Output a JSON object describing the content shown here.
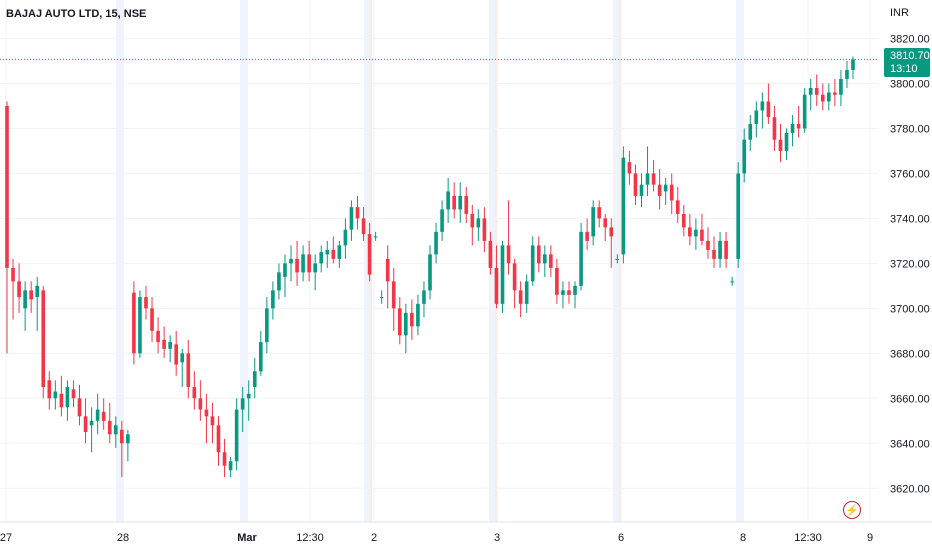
{
  "header": {
    "title": "BAJAJ AUTO LTD, 15, NSE"
  },
  "price_scale": {
    "currency": "INR"
  },
  "current_price": {
    "value": "3810.70",
    "countdown": "13:10"
  },
  "colors": {
    "up": "#089981",
    "down": "#f23645",
    "grid": "#f0f3fa",
    "text": "#131722"
  },
  "icons": {
    "alert": "lightning-icon"
  },
  "chart_data": {
    "type": "candlestick",
    "title": "BAJAJ AUTO LTD, 15, NSE",
    "ylim": [
      3605,
      3830
    ],
    "y_ticks": [
      3620,
      3640,
      3660,
      3680,
      3700,
      3720,
      3740,
      3760,
      3780,
      3800,
      3820
    ],
    "x_ticks": [
      "27",
      "28",
      "Mar",
      "12:30",
      "2",
      "3",
      "6",
      "8",
      "12:30",
      "9"
    ],
    "session_breaks": [
      "28",
      "Mar",
      "2",
      "3",
      "6",
      "8"
    ],
    "last_price": 3810.7,
    "candles": [
      [
        3790,
        3792,
        3680,
        3718
      ],
      [
        3718,
        3722,
        3695,
        3712
      ],
      [
        3712,
        3720,
        3698,
        3705
      ],
      [
        3700,
        3712,
        3690,
        3708
      ],
      [
        3708,
        3712,
        3698,
        3704
      ],
      [
        3705,
        3714,
        3690,
        3710
      ],
      [
        3708,
        3710,
        3660,
        3665
      ],
      [
        3668,
        3672,
        3655,
        3660
      ],
      [
        3660,
        3668,
        3655,
        3663
      ],
      [
        3662,
        3670,
        3652,
        3656
      ],
      [
        3656,
        3668,
        3650,
        3665
      ],
      [
        3664,
        3668,
        3656,
        3660
      ],
      [
        3660,
        3666,
        3648,
        3652
      ],
      [
        3652,
        3660,
        3640,
        3645
      ],
      [
        3648,
        3656,
        3636,
        3650
      ],
      [
        3650,
        3662,
        3644,
        3655
      ],
      [
        3654,
        3660,
        3646,
        3650
      ],
      [
        3650,
        3658,
        3640,
        3644
      ],
      [
        3644,
        3652,
        3638,
        3648
      ],
      [
        3646,
        3650,
        3625,
        3640
      ],
      [
        3640,
        3646,
        3632,
        3644
      ],
      [
        3707,
        3712,
        3675,
        3680
      ],
      [
        3680,
        3708,
        3678,
        3705
      ],
      [
        3705,
        3710,
        3695,
        3700
      ],
      [
        3700,
        3705,
        3685,
        3690
      ],
      [
        3690,
        3696,
        3680,
        3685
      ],
      [
        3686,
        3692,
        3678,
        3682
      ],
      [
        3682,
        3688,
        3676,
        3685
      ],
      [
        3684,
        3690,
        3670,
        3675
      ],
      [
        3676,
        3682,
        3665,
        3680
      ],
      [
        3680,
        3686,
        3660,
        3665
      ],
      [
        3665,
        3672,
        3655,
        3660
      ],
      [
        3660,
        3668,
        3650,
        3655
      ],
      [
        3655,
        3662,
        3640,
        3652
      ],
      [
        3652,
        3658,
        3640,
        3648
      ],
      [
        3648,
        3652,
        3630,
        3636
      ],
      [
        3636,
        3642,
        3625,
        3630
      ],
      [
        3628,
        3634,
        3625,
        3632
      ],
      [
        3632,
        3660,
        3628,
        3655
      ],
      [
        3655,
        3665,
        3645,
        3660
      ],
      [
        3660,
        3668,
        3650,
        3662
      ],
      [
        3665,
        3678,
        3660,
        3672
      ],
      [
        3672,
        3690,
        3670,
        3685
      ],
      [
        3685,
        3705,
        3680,
        3700
      ],
      [
        3700,
        3712,
        3695,
        3708
      ],
      [
        3708,
        3720,
        3704,
        3716
      ],
      [
        3714,
        3724,
        3705,
        3720
      ],
      [
        3720,
        3728,
        3712,
        3722
      ],
      [
        3722,
        3730,
        3710,
        3716
      ],
      [
        3716,
        3728,
        3712,
        3724
      ],
      [
        3724,
        3730,
        3712,
        3716
      ],
      [
        3716,
        3724,
        3708,
        3720
      ],
      [
        3720,
        3728,
        3716,
        3725
      ],
      [
        3724,
        3730,
        3718,
        3726
      ],
      [
        3726,
        3732,
        3720,
        3722
      ],
      [
        3722,
        3730,
        3718,
        3728
      ],
      [
        3728,
        3740,
        3722,
        3735
      ],
      [
        3735,
        3748,
        3730,
        3745
      ],
      [
        3745,
        3750,
        3735,
        3740
      ],
      [
        3740,
        3745,
        3730,
        3733
      ],
      [
        3733,
        3738,
        3712,
        3715
      ],
      [
        3732,
        3734,
        3730,
        3732
      ],
      [
        3705,
        3708,
        3702,
        3705
      ],
      [
        3722,
        3728,
        3700,
        3712
      ],
      [
        3712,
        3718,
        3690,
        3700
      ],
      [
        3700,
        3705,
        3684,
        3688
      ],
      [
        3688,
        3702,
        3680,
        3698
      ],
      [
        3698,
        3704,
        3686,
        3692
      ],
      [
        3692,
        3706,
        3688,
        3702
      ],
      [
        3702,
        3712,
        3696,
        3708
      ],
      [
        3708,
        3728,
        3704,
        3724
      ],
      [
        3724,
        3738,
        3720,
        3734
      ],
      [
        3734,
        3748,
        3730,
        3744
      ],
      [
        3744,
        3758,
        3738,
        3752
      ],
      [
        3750,
        3756,
        3740,
        3744
      ],
      [
        3744,
        3756,
        3738,
        3750
      ],
      [
        3750,
        3754,
        3738,
        3742
      ],
      [
        3742,
        3746,
        3728,
        3736
      ],
      [
        3736,
        3744,
        3730,
        3740
      ],
      [
        3740,
        3745,
        3725,
        3730
      ],
      [
        3730,
        3734,
        3715,
        3718
      ],
      [
        3718,
        3728,
        3700,
        3702
      ],
      [
        3702,
        3730,
        3698,
        3728
      ],
      [
        3728,
        3748,
        3715,
        3720
      ],
      [
        3720,
        3722,
        3700,
        3708
      ],
      [
        3708,
        3712,
        3696,
        3702
      ],
      [
        3702,
        3715,
        3698,
        3712
      ],
      [
        3712,
        3732,
        3710,
        3728
      ],
      [
        3728,
        3732,
        3716,
        3720
      ],
      [
        3720,
        3728,
        3714,
        3724
      ],
      [
        3724,
        3728,
        3714,
        3718
      ],
      [
        3718,
        3722,
        3702,
        3706
      ],
      [
        3706,
        3712,
        3700,
        3708
      ],
      [
        3708,
        3712,
        3702,
        3706
      ],
      [
        3706,
        3712,
        3700,
        3710
      ],
      [
        3710,
        3738,
        3708,
        3734
      ],
      [
        3734,
        3740,
        3726,
        3730
      ],
      [
        3732,
        3748,
        3728,
        3745
      ],
      [
        3745,
        3748,
        3736,
        3740
      ],
      [
        3740,
        3742,
        3730,
        3736
      ],
      [
        3736,
        3740,
        3718,
        3732
      ],
      [
        3722,
        3724,
        3720,
        3722
      ],
      [
        3724,
        3772,
        3720,
        3767
      ],
      [
        3765,
        3770,
        3755,
        3760
      ],
      [
        3760,
        3764,
        3746,
        3750
      ],
      [
        3750,
        3760,
        3745,
        3755
      ],
      [
        3755,
        3772,
        3750,
        3760
      ],
      [
        3760,
        3766,
        3752,
        3755
      ],
      [
        3755,
        3762,
        3744,
        3750
      ],
      [
        3752,
        3758,
        3746,
        3755
      ],
      [
        3755,
        3760,
        3742,
        3748
      ],
      [
        3748,
        3754,
        3738,
        3742
      ],
      [
        3742,
        3746,
        3732,
        3736
      ],
      [
        3736,
        3742,
        3728,
        3732
      ],
      [
        3732,
        3740,
        3726,
        3735
      ],
      [
        3735,
        3742,
        3728,
        3730
      ],
      [
        3730,
        3736,
        3722,
        3726
      ],
      [
        3726,
        3732,
        3718,
        3722
      ],
      [
        3722,
        3734,
        3718,
        3730
      ],
      [
        3730,
        3734,
        3718,
        3722
      ],
      [
        3712,
        3714,
        3710,
        3712
      ],
      [
        3722,
        3765,
        3718,
        3760
      ],
      [
        3760,
        3780,
        3756,
        3775
      ],
      [
        3775,
        3786,
        3770,
        3782
      ],
      [
        3782,
        3792,
        3776,
        3788
      ],
      [
        3788,
        3796,
        3780,
        3792
      ],
      [
        3792,
        3800,
        3782,
        3785
      ],
      [
        3785,
        3790,
        3770,
        3775
      ],
      [
        3775,
        3782,
        3765,
        3770
      ],
      [
        3770,
        3780,
        3766,
        3778
      ],
      [
        3778,
        3786,
        3772,
        3782
      ],
      [
        3782,
        3790,
        3776,
        3780
      ],
      [
        3780,
        3798,
        3778,
        3795
      ],
      [
        3795,
        3802,
        3788,
        3798
      ],
      [
        3798,
        3804,
        3790,
        3795
      ],
      [
        3795,
        3800,
        3788,
        3792
      ],
      [
        3792,
        3800,
        3788,
        3796
      ],
      [
        3796,
        3802,
        3790,
        3795
      ],
      [
        3795,
        3806,
        3790,
        3802
      ],
      [
        3802,
        3810,
        3798,
        3806
      ],
      [
        3806,
        3812,
        3802,
        3810.7
      ]
    ]
  }
}
